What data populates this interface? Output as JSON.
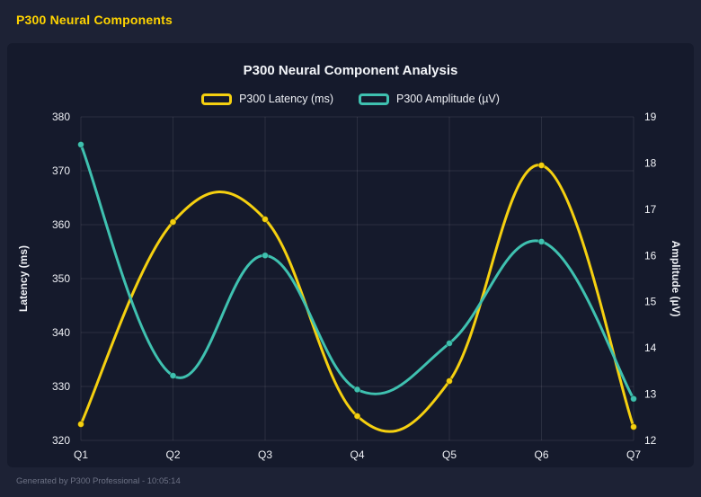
{
  "page": {
    "header_title": "P300 Neural Components",
    "footer": "Generated by P300 Professional - 10:05:14"
  },
  "colors": {
    "background": "#1d2235",
    "panel": "#151a2c",
    "grid": "rgba(255,255,255,0.09)",
    "tick_text": "#eef0f5",
    "latency_yellow": "#f5d010",
    "amplitude_teal": "#3fc1b0"
  },
  "chart_data": {
    "type": "line",
    "title": "P300 Neural Component Analysis",
    "categories": [
      "Q1",
      "Q2",
      "Q3",
      "Q4",
      "Q5",
      "Q6",
      "Q7"
    ],
    "series": [
      {
        "name": "P300 Latency (ms)",
        "color": "#f5d010",
        "axis": "left",
        "values": [
          323,
          360.5,
          361,
          324.5,
          331,
          371,
          322.5
        ]
      },
      {
        "name": "P300 Amplitude (µV)",
        "color": "#3fc1b0",
        "axis": "right",
        "values": [
          18.4,
          13.4,
          16.0,
          13.1,
          14.1,
          16.3,
          12.9
        ]
      }
    ],
    "left_axis": {
      "label": "Latency (ms)",
      "min": 320,
      "max": 380,
      "tick_step": 10
    },
    "right_axis": {
      "label": "Amplitude (µV)",
      "min": 12,
      "max": 19,
      "tick_step": 1
    },
    "grid": true,
    "legend_position": "top",
    "curve": "smooth"
  }
}
